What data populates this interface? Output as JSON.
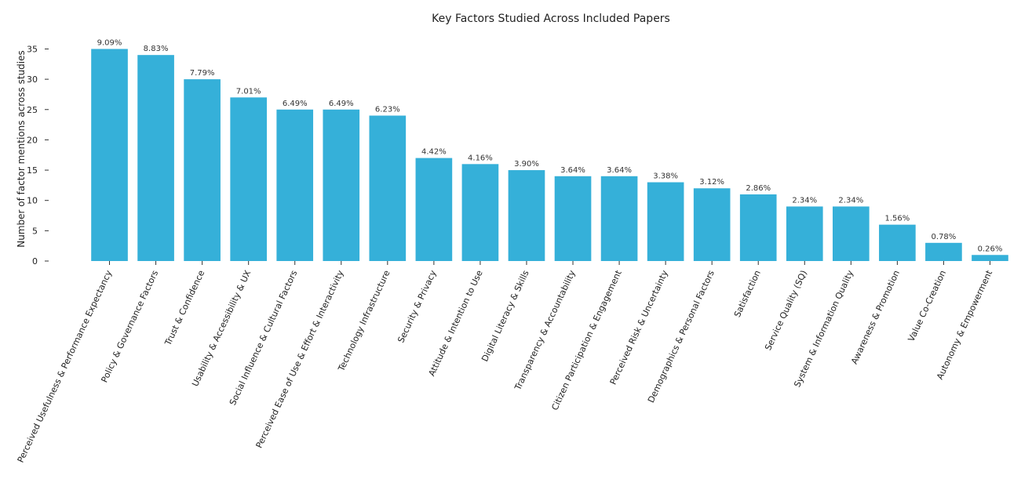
{
  "chart_data": {
    "type": "bar",
    "title": "Key Factors Studied Across Included Papers",
    "xlabel": "",
    "ylabel": "Number of factor mentions across studies",
    "ylim": [
      0,
      36
    ],
    "yticks": [
      0,
      5,
      10,
      15,
      20,
      25,
      30,
      35
    ],
    "grid": false,
    "bar_color": "#35b0d9",
    "categories": [
      "Perceived Usefulness & Performance Expectancy",
      "Policy & Governance Factors",
      "Trust & Confidence",
      "Usability & Accessibility & UX",
      "Social Influence & Cultural Factors",
      "Perceived Ease of Use & Effort & Interactivity",
      "Technology Infrastructure",
      "Security & Privacy",
      "Attitude & Intention to Use",
      "Digital Literacy & Skills",
      "Transparency & Accountability",
      "Citizen Participation & Engagement",
      "Perceived Risk & Uncertainty",
      "Demographics & Personal Factors",
      "Satisfaction",
      "Service Quality (SQ)",
      "System & Information Quality",
      "Awareness & Promotion",
      "Value Co-Creation",
      "Autonomy & Empowerment"
    ],
    "values": [
      35,
      34,
      30,
      27,
      25,
      25,
      24,
      17,
      16,
      15,
      14,
      14,
      13,
      12,
      11,
      9,
      9,
      6,
      3,
      1
    ],
    "data_labels": [
      "9.09%",
      "8.83%",
      "7.79%",
      "7.01%",
      "6.49%",
      "6.49%",
      "6.23%",
      "4.42%",
      "4.16%",
      "3.90%",
      "3.64%",
      "3.64%",
      "3.38%",
      "3.12%",
      "2.86%",
      "2.34%",
      "2.34%",
      "1.56%",
      "0.78%",
      "0.26%"
    ]
  }
}
